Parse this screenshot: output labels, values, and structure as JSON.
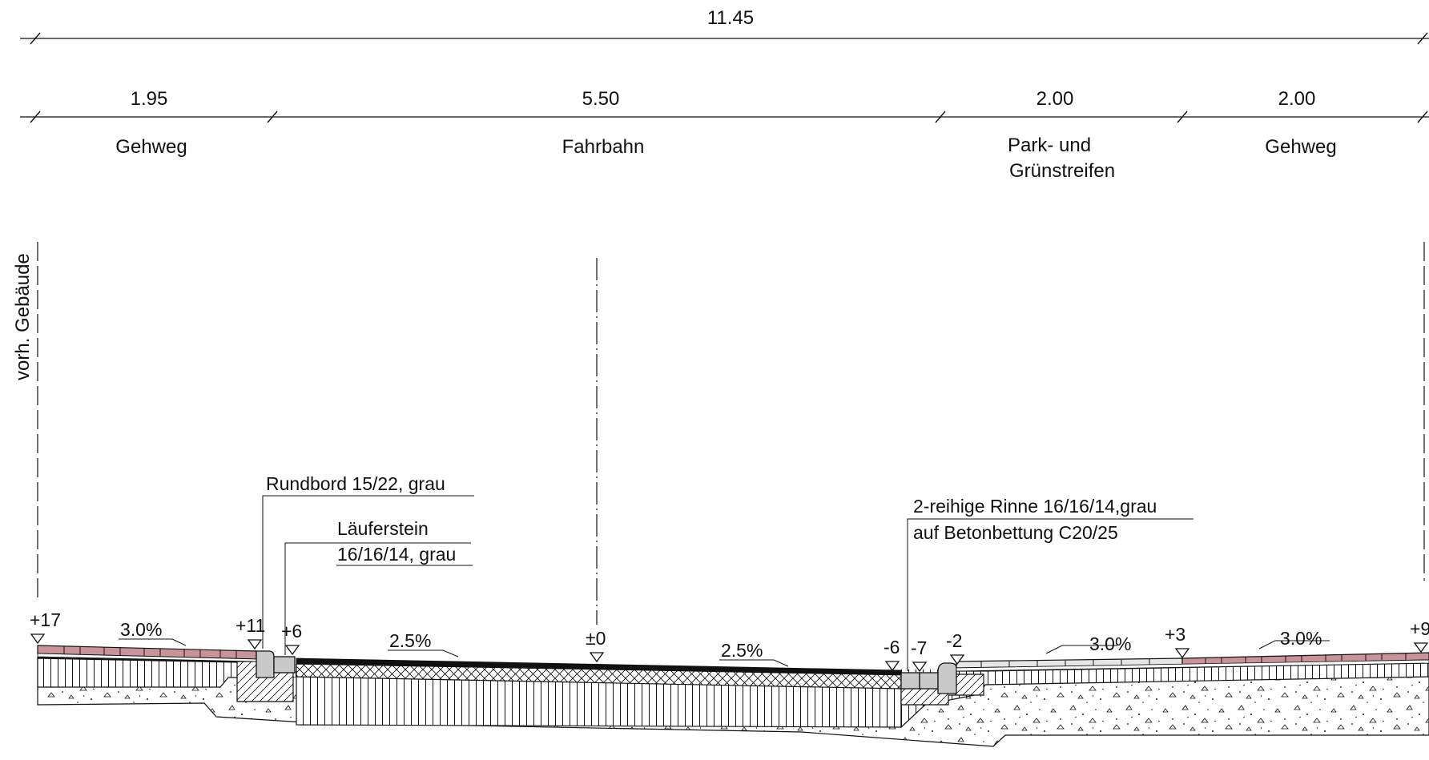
{
  "dimensions": {
    "total": "11.45",
    "segments": [
      "1.95",
      "5.50",
      "2.00",
      "2.00"
    ]
  },
  "zones": {
    "gehweg_left": "Gehweg",
    "fahrbahn": "Fahrbahn",
    "park_line1": "Park- und",
    "park_line2": "Grünstreifen",
    "gehweg_right": "Gehweg"
  },
  "building_label": "vorh. Gebäude",
  "callouts": {
    "rundbord": "Rundbord 15/22, grau",
    "laeuferstein_line1": "Läuferstein",
    "laeuferstein_line2": "16/16/14, grau",
    "rinne_line1": "2-reihige Rinne 16/16/14,grau",
    "rinne_line2": "auf Betonbettung C20/25"
  },
  "elevations": [
    "+17",
    "+11",
    "+6",
    "±0",
    "-6",
    "-7",
    "-2",
    "+3",
    "+9"
  ],
  "slopes": [
    "3.0%",
    "2.5%",
    "2.5%",
    "3.0%",
    "3.0%"
  ],
  "colors": {
    "paving_red": "#c8949a",
    "kerb_gray": "#c8c8c8",
    "light_paving": "#e6e6e6",
    "asphalt": "#111111"
  }
}
